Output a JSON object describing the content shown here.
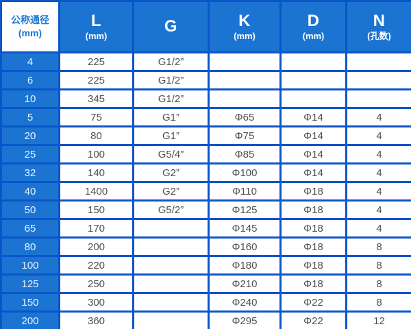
{
  "table": {
    "header": {
      "col1": {
        "line1": "公称通径",
        "line2": "(mm)"
      },
      "columns": [
        {
          "main": "L",
          "sub": "(mm)"
        },
        {
          "main": "G",
          "sub": ""
        },
        {
          "main": "K",
          "sub": "(mm)"
        },
        {
          "main": "D",
          "sub": "(mm)"
        },
        {
          "main": "N",
          "sub": "(孔数)"
        }
      ]
    },
    "rows": [
      [
        "4",
        "225",
        "G1/2”",
        "",
        "",
        ""
      ],
      [
        "6",
        "225",
        "G1/2”",
        "",
        "",
        ""
      ],
      [
        "10",
        "345",
        "G1/2”",
        "",
        "",
        ""
      ],
      [
        "5",
        "75",
        "G1”",
        "Φ65",
        "Φ14",
        "4"
      ],
      [
        "20",
        "80",
        "G1”",
        "Φ75",
        "Φ14",
        "4"
      ],
      [
        "25",
        "100",
        "G5/4”",
        "Φ85",
        "Φ14",
        "4"
      ],
      [
        "32",
        "140",
        "G2”",
        "Φ100",
        "Φ14",
        "4"
      ],
      [
        "40",
        "1400",
        "G2”",
        "Φ110",
        "Φ18",
        "4"
      ],
      [
        "50",
        "150",
        "G5/2”",
        "Φ125",
        "Φ18",
        "4"
      ],
      [
        "65",
        "170",
        "",
        "Φ145",
        "Φ18",
        "4"
      ],
      [
        "80",
        "200",
        "",
        "Φ160",
        "Φ18",
        "8"
      ],
      [
        "100",
        "220",
        "",
        "Φ180",
        "Φ18",
        "8"
      ],
      [
        "125",
        "250",
        "",
        "Φ210",
        "Φ18",
        "8"
      ],
      [
        "150",
        "300",
        "",
        "Φ240",
        "Φ22",
        "8"
      ],
      [
        "200",
        "360",
        "",
        "Φ295",
        "Φ22",
        "12"
      ]
    ]
  },
  "colors": {
    "cell_blue": "#1B74D2",
    "border_blue": "#0B55C9",
    "body_text": "#4F4F4F",
    "header_text": "#FFFFFF"
  }
}
